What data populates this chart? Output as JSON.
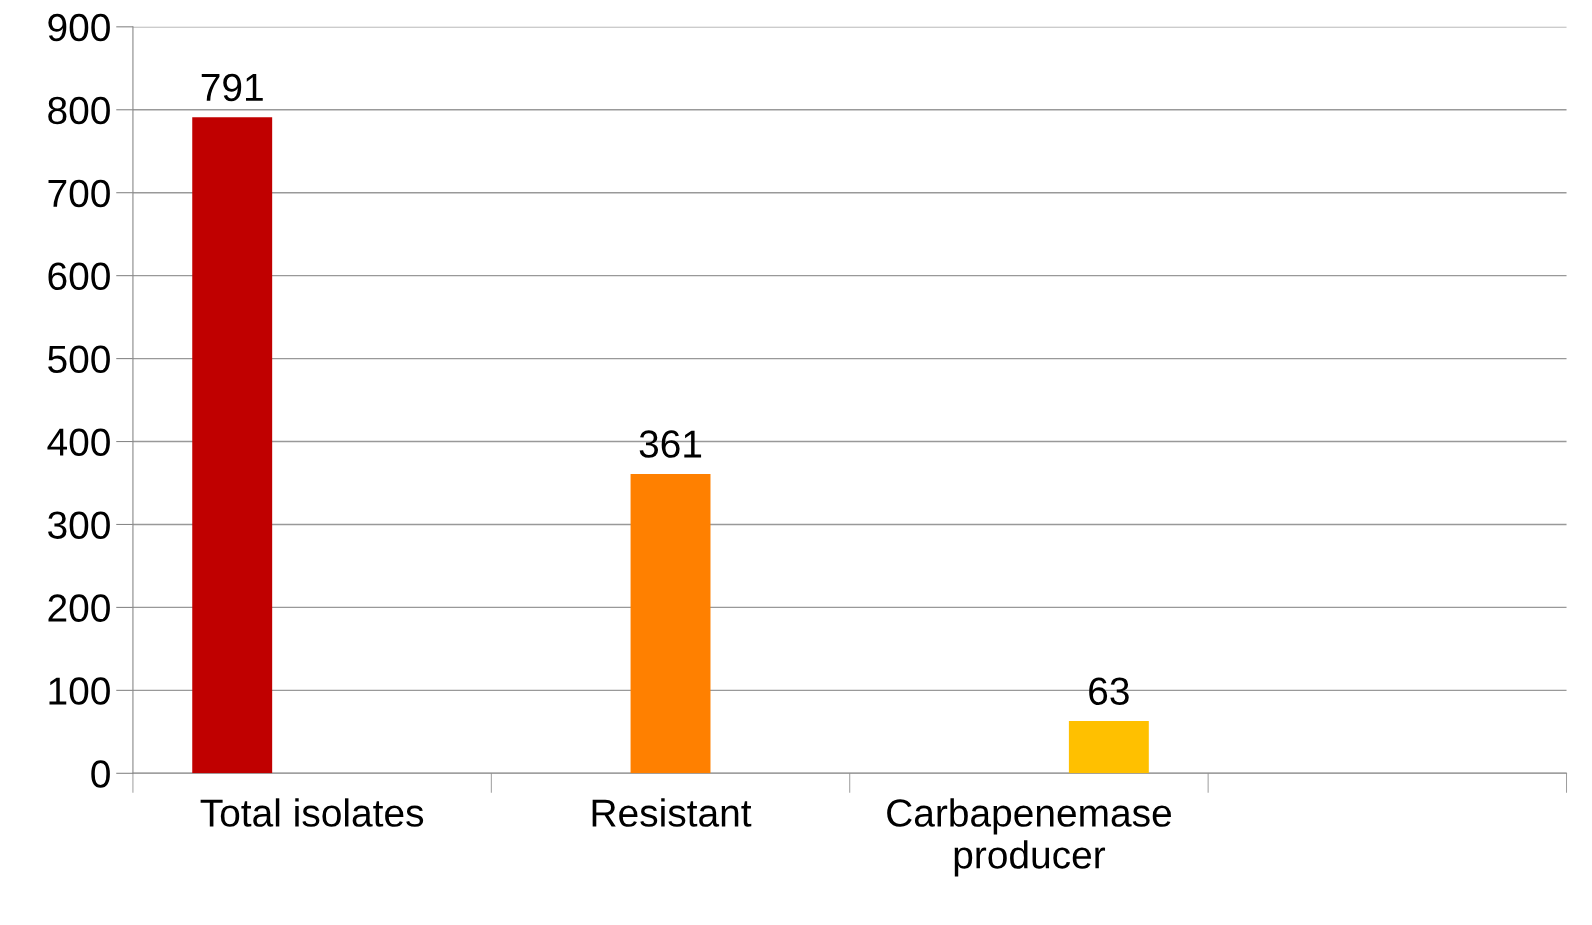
{
  "chart_data": {
    "type": "bar",
    "categories": [
      "Total isolates",
      "Resistant",
      "Carbapenemase\nproducer",
      null
    ],
    "series": [
      {
        "color": "#c00000",
        "values": [
          791,
          null,
          null,
          null
        ]
      },
      {
        "color": "#ff8000",
        "values": [
          null,
          361,
          null,
          null
        ]
      },
      {
        "color": "#ffc000",
        "values": [
          null,
          null,
          63,
          null
        ]
      }
    ],
    "ylim": [
      0,
      900
    ],
    "yticks": [
      0,
      100,
      200,
      300,
      400,
      500,
      600,
      700,
      800,
      900
    ],
    "grid": "y",
    "data_labels": true
  }
}
